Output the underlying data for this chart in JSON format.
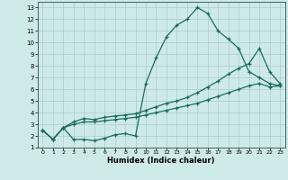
{
  "xlabel": "Humidex (Indice chaleur)",
  "xlim": [
    -0.5,
    23.5
  ],
  "ylim": [
    1,
    13.5
  ],
  "xticks": [
    0,
    1,
    2,
    3,
    4,
    5,
    6,
    7,
    8,
    9,
    10,
    11,
    12,
    13,
    14,
    15,
    16,
    17,
    18,
    19,
    20,
    21,
    22,
    23
  ],
  "yticks": [
    1,
    2,
    3,
    4,
    5,
    6,
    7,
    8,
    9,
    10,
    11,
    12,
    13
  ],
  "bg_color": "#ceeae8",
  "grid_color": "#aaccca",
  "line_color": "#1a6b5e",
  "line1_x": [
    0,
    1,
    2,
    3,
    4,
    5,
    6,
    7,
    8,
    9,
    10,
    11,
    12,
    13,
    14,
    15,
    16,
    17,
    18,
    19,
    20,
    21,
    22,
    23
  ],
  "line1_y": [
    2.5,
    1.7,
    2.7,
    1.7,
    1.7,
    1.6,
    1.8,
    2.1,
    2.2,
    2.0,
    6.5,
    8.7,
    10.5,
    11.5,
    12.0,
    13.0,
    12.5,
    11.0,
    10.3,
    9.5,
    7.5,
    7.0,
    6.5,
    6.3
  ],
  "line2_x": [
    0,
    1,
    2,
    3,
    4,
    5,
    6,
    7,
    8,
    9,
    10,
    11,
    12,
    13,
    14,
    15,
    16,
    17,
    18,
    19,
    20,
    21,
    22,
    23
  ],
  "line2_y": [
    2.5,
    1.7,
    2.7,
    3.2,
    3.5,
    3.4,
    3.6,
    3.7,
    3.8,
    3.9,
    4.2,
    4.5,
    4.8,
    5.0,
    5.3,
    5.7,
    6.2,
    6.7,
    7.3,
    7.8,
    8.2,
    9.5,
    7.5,
    6.5
  ],
  "line3_x": [
    0,
    1,
    2,
    3,
    4,
    5,
    6,
    7,
    8,
    9,
    10,
    11,
    12,
    13,
    14,
    15,
    16,
    17,
    18,
    19,
    20,
    21,
    22,
    23
  ],
  "line3_y": [
    2.5,
    1.7,
    2.7,
    3.0,
    3.2,
    3.2,
    3.3,
    3.4,
    3.5,
    3.6,
    3.8,
    4.0,
    4.2,
    4.4,
    4.6,
    4.8,
    5.1,
    5.4,
    5.7,
    6.0,
    6.3,
    6.5,
    6.2,
    6.3
  ]
}
